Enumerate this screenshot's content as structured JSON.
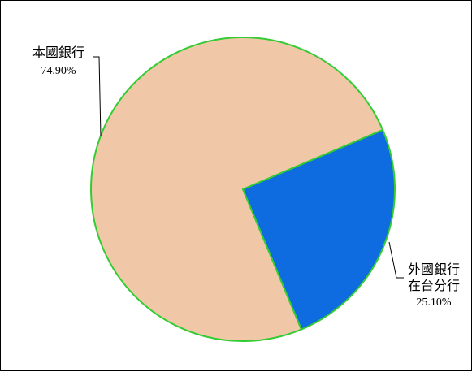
{
  "chart_data": {
    "type": "pie",
    "title": "",
    "slices": [
      {
        "label_lines": [
          "本國銀行"
        ],
        "value": 74.9,
        "value_label": "74.90%",
        "color": "#f0c8a8"
      },
      {
        "label_lines": [
          "外國銀行",
          "在台分行"
        ],
        "value": 25.1,
        "value_label": "25.10%",
        "color": "#0f6be0"
      }
    ],
    "edge_color": "#33cc33",
    "leader_color": "#000000",
    "legend": "none"
  }
}
